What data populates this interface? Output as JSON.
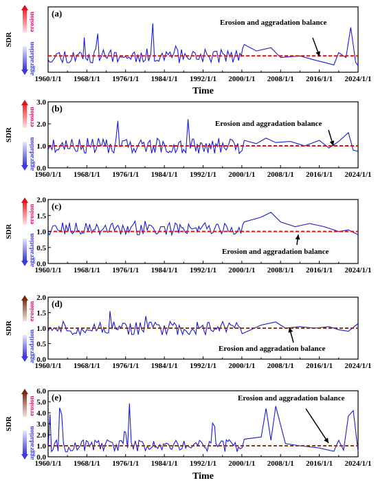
{
  "colors": {
    "series": "#1a1ad6",
    "balance": "#e01010",
    "balance_brown": "#8a3a1a",
    "erosion_text": "#e0106a",
    "aggradation_text": "#3a3adf",
    "arrow_up": "#e01020",
    "arrow_down": "#3a3adf"
  },
  "chart_data": [
    {
      "type": "line",
      "panel": "(a)",
      "ylabel": "SDR",
      "xlabel": "Time",
      "erosion_label": "erosion",
      "aggradation_label": "aggradation",
      "yticks": [],
      "ylim": [
        0,
        4.0
      ],
      "balance_value": 1.0,
      "annotation": "Erosion and aggradation balance",
      "xticks": [
        "1960/1/1",
        "1968/1/1",
        "1976/1/1",
        "1984/1/1",
        "1992/1/1",
        "2000/1/1",
        "2008/1/1",
        "2016/1/1",
        "2024/1/1"
      ],
      "seed": 11,
      "mean": 1.0,
      "amp": 0.45,
      "spike_prob": 0.07,
      "spike_max": 3.0,
      "late": [
        [
          2000.5,
          1.7
        ],
        [
          2003,
          1.3
        ],
        [
          2006,
          1.5
        ],
        [
          2008,
          0.9
        ],
        [
          2012,
          1.0
        ],
        [
          2015,
          0.75
        ],
        [
          2019,
          0.45
        ],
        [
          2020,
          1.2
        ],
        [
          2021.5,
          0.9
        ],
        [
          2022.5,
          2.75
        ],
        [
          2023.5,
          0.6
        ],
        [
          2024,
          0.4
        ]
      ]
    },
    {
      "type": "line",
      "panel": "(b)",
      "ylabel": "SDR",
      "xlabel": "",
      "erosion_label": "erosion",
      "aggradation_label": "aggradation",
      "yticks": [
        "0.0",
        "1.0",
        "2.0",
        "3.0"
      ],
      "ylim": [
        0,
        3.0
      ],
      "balance_value": 1.0,
      "annotation": "Erosion and aggradation balance",
      "xticks": [
        "1960/1/1",
        "1968/1/1",
        "1976/1/1",
        "1984/1/1",
        "1992/1/1",
        "2000/1/1",
        "2008/1/1",
        "2016/1/1",
        "2024/1/1"
      ],
      "seed": 23,
      "mean": 1.0,
      "amp": 0.35,
      "spike_prob": 0.03,
      "spike_max": 2.3,
      "late": [
        [
          2000.5,
          1.25
        ],
        [
          2003,
          1.1
        ],
        [
          2005,
          1.35
        ],
        [
          2007,
          1.15
        ],
        [
          2010,
          1.2
        ],
        [
          2013,
          1.0
        ],
        [
          2016,
          1.25
        ],
        [
          2018,
          0.9
        ],
        [
          2020,
          1.2
        ],
        [
          2022,
          1.6
        ],
        [
          2023,
          0.8
        ],
        [
          2024,
          0.75
        ]
      ]
    },
    {
      "type": "line",
      "panel": "(c)",
      "ylabel": "SDR",
      "xlabel": "",
      "erosion_label": "erosion",
      "aggradation_label": "aggradation",
      "yticks": [
        "0.0",
        "0.5",
        "1.0",
        "1.5",
        "2.0"
      ],
      "ylim": [
        0,
        2.0
      ],
      "balance_value": 1.0,
      "annotation": "Erosion and aggradation balance",
      "xticks": [
        "1960/1/1",
        "1968/1/1",
        "1976/1/1",
        "1984/1/1",
        "1992/1/1",
        "2000/1/1",
        "2008/1/1",
        "2016/1/1",
        "2024/1/1"
      ],
      "seed": 37,
      "mean": 1.08,
      "amp": 0.2,
      "spike_prob": 0.02,
      "spike_max": 1.6,
      "late": [
        [
          2000.5,
          1.3
        ],
        [
          2004,
          1.45
        ],
        [
          2006,
          1.6
        ],
        [
          2008,
          1.3
        ],
        [
          2011,
          1.15
        ],
        [
          2014,
          1.25
        ],
        [
          2017,
          1.15
        ],
        [
          2020,
          1.0
        ],
        [
          2022,
          1.05
        ],
        [
          2024,
          0.9
        ]
      ]
    },
    {
      "type": "line",
      "panel": "(d)",
      "ylabel": "SDR",
      "xlabel": "",
      "erosion_label": "erosion",
      "aggradation_label": "aggradation",
      "yticks": [
        "0.0",
        "0.5",
        "1.0",
        "1.5",
        "2.0"
      ],
      "ylim": [
        0,
        2.0
      ],
      "balance_value": 1.0,
      "annotation": "Erosion and aggradation balance",
      "xticks": [
        "1960/1/1",
        "1968/1/1",
        "1976/1/1",
        "1984/1/1",
        "1992/1/1",
        "2000/1/1",
        "2008/1/1",
        "2016/1/1",
        "2024/1/1"
      ],
      "seed": 51,
      "mean": 1.0,
      "amp": 0.22,
      "spike_prob": 0.02,
      "spike_max": 1.55,
      "late": [
        [
          2000.5,
          0.85
        ],
        [
          2004,
          1.1
        ],
        [
          2007,
          1.2
        ],
        [
          2009,
          1.0
        ],
        [
          2012,
          1.05
        ],
        [
          2015,
          1.0
        ],
        [
          2018,
          1.05
        ],
        [
          2020,
          0.95
        ],
        [
          2022,
          0.9
        ],
        [
          2024,
          1.15
        ]
      ]
    },
    {
      "type": "line",
      "panel": "(e)",
      "ylabel": "SDR",
      "xlabel": "Time",
      "erosion_label": "erosion",
      "aggradation_label": "aggradation",
      "yticks": [
        "0.0",
        "1.0",
        "2.0",
        "3.0",
        "4.0",
        "5.0",
        "6.0"
      ],
      "ylim": [
        0,
        6.0
      ],
      "balance_value": 1.0,
      "annotation": "Erosion and aggradation balance",
      "xticks": [
        "1960/1/1",
        "1968/1/1",
        "1976/1/1",
        "1984/1/1",
        "1992/1/1",
        "2000/1/1",
        "2008/1/1",
        "2016/1/1",
        "2024/1/1"
      ],
      "seed": 67,
      "mean": 1.0,
      "amp": 0.55,
      "spike_prob": 0.08,
      "spike_max": 4.9,
      "late": [
        [
          2000.5,
          1.6
        ],
        [
          2004,
          1.8
        ],
        [
          2005,
          4.4
        ],
        [
          2006,
          1.5
        ],
        [
          2007,
          4.6
        ],
        [
          2009,
          1.2
        ],
        [
          2012,
          1.0
        ],
        [
          2016,
          0.8
        ],
        [
          2019,
          0.5
        ],
        [
          2020,
          1.5
        ],
        [
          2021,
          0.6
        ],
        [
          2022,
          3.7
        ],
        [
          2023,
          4.2
        ],
        [
          2024,
          0.5
        ]
      ]
    }
  ]
}
